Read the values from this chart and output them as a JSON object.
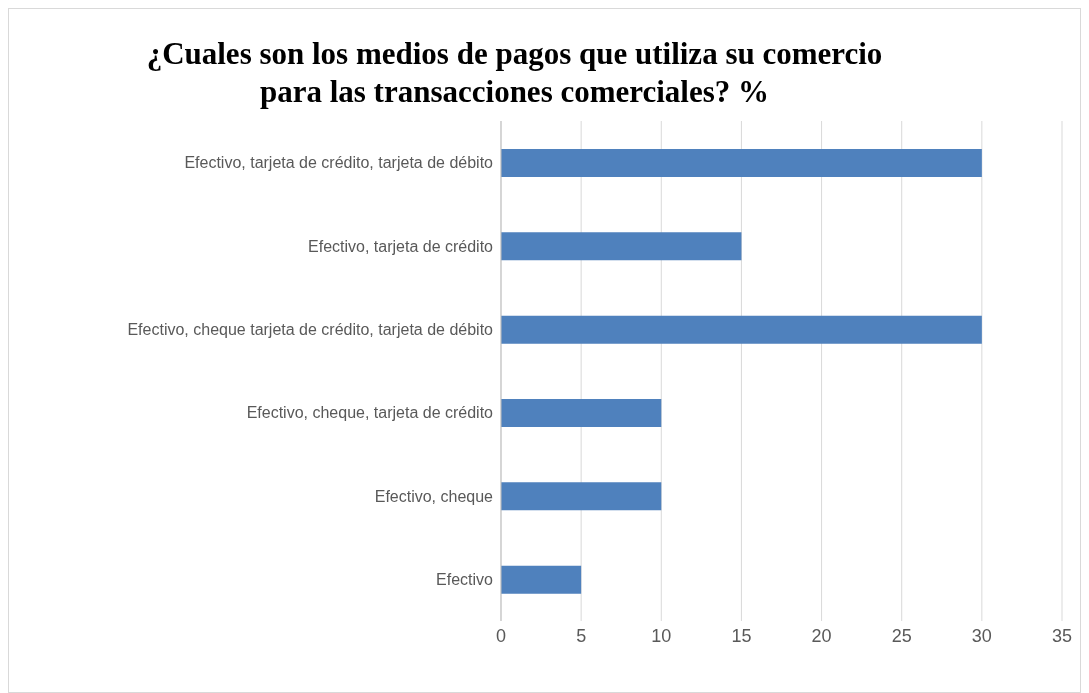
{
  "chart_data": {
    "type": "bar",
    "orientation": "horizontal",
    "title": "¿Cuales son los medios de pagos que utiliza su comercio para las transacciones comerciales? %",
    "categories": [
      "Efectivo, tarjeta de crédito, tarjeta de débito",
      "Efectivo, tarjeta de crédito",
      "Efectivo, cheque tarjeta de crédito, tarjeta de débito",
      "Efectivo, cheque, tarjeta de crédito",
      "Efectivo, cheque",
      "Efectivo"
    ],
    "values": [
      30,
      15,
      30,
      10,
      10,
      5
    ],
    "color": "#4f81bd",
    "xlim": [
      0,
      35
    ],
    "xticks": [
      0,
      5,
      10,
      15,
      20,
      25,
      30,
      35
    ],
    "grid": "x",
    "legend": false
  }
}
